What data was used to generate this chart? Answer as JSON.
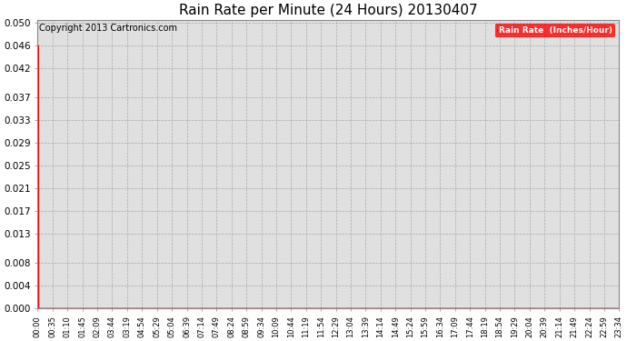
{
  "title": "Rain Rate per Minute (24 Hours) 20130407",
  "title_fontsize": 11,
  "background_color": "#ffffff",
  "plot_bg_color": "#e0e0e0",
  "grid_color": "#aaaaaa",
  "line_color": "#ff0000",
  "copyright_text": "Copyright 2013 Cartronics.com",
  "copyright_fontsize": 7,
  "legend_label": "Rain Rate  (Inches/Hour)",
  "legend_bg": "#ff0000",
  "legend_text_color": "#ffffff",
  "yticks": [
    0.0,
    0.004,
    0.008,
    0.013,
    0.017,
    0.021,
    0.025,
    0.029,
    0.033,
    0.037,
    0.042,
    0.046,
    0.05
  ],
  "ylim": [
    0.0,
    0.0505
  ],
  "xtick_labels": [
    "00:00",
    "00:35",
    "01:10",
    "01:45",
    "02:09",
    "03:44",
    "03:19",
    "04:54",
    "05:29",
    "05:04",
    "06:39",
    "07:14",
    "07:49",
    "08:24",
    "08:59",
    "09:34",
    "10:09",
    "10:44",
    "11:19",
    "11:54",
    "12:29",
    "13:04",
    "13:39",
    "14:14",
    "14:49",
    "15:24",
    "15:59",
    "16:34",
    "17:09",
    "17:44",
    "18:19",
    "18:54",
    "19:29",
    "20:04",
    "20:39",
    "21:14",
    "21:49",
    "22:24",
    "22:59",
    "23:34"
  ],
  "num_points": 1440,
  "spike_idx": 2,
  "spike_val": 0.046,
  "xtick_fontsize": 6,
  "ytick_fontsize": 7.5
}
